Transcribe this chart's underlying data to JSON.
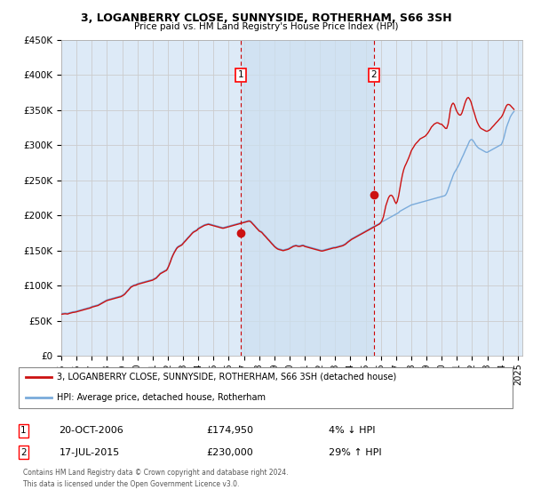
{
  "title": "3, LOGANBERRY CLOSE, SUNNYSIDE, ROTHERHAM, S66 3SH",
  "subtitle": "Price paid vs. HM Land Registry's House Price Index (HPI)",
  "ylabel_ticks": [
    "£0",
    "£50K",
    "£100K",
    "£150K",
    "£200K",
    "£250K",
    "£300K",
    "£350K",
    "£400K",
    "£450K"
  ],
  "ylim": [
    0,
    450000
  ],
  "xlim_start": 1995.0,
  "xlim_end": 2025.3,
  "hpi_color": "#7aabdb",
  "price_color": "#cc1111",
  "grid_color": "#cccccc",
  "bg_color": "#ddeaf7",
  "shade_color": "#ccddf0",
  "transaction1_date": 2006.8,
  "transaction1_price": 174950,
  "transaction1_label": "1",
  "transaction1_text": "20-OCT-2006",
  "transaction1_amount": "£174,950",
  "transaction1_hpi": "4% ↓ HPI",
  "transaction2_date": 2015.55,
  "transaction2_price": 230000,
  "transaction2_label": "2",
  "transaction2_text": "17-JUL-2015",
  "transaction2_amount": "£230,000",
  "transaction2_hpi": "29% ↑ HPI",
  "legend_line1": "3, LOGANBERRY CLOSE, SUNNYSIDE, ROTHERHAM, S66 3SH (detached house)",
  "legend_line2": "HPI: Average price, detached house, Rotherham",
  "footer": "Contains HM Land Registry data © Crown copyright and database right 2024.\nThis data is licensed under the Open Government Licence v3.0.",
  "hpi_data_x": [
    1995.0,
    1995.08,
    1995.17,
    1995.25,
    1995.33,
    1995.42,
    1995.5,
    1995.58,
    1995.67,
    1995.75,
    1995.83,
    1995.92,
    1996.0,
    1996.08,
    1996.17,
    1996.25,
    1996.33,
    1996.42,
    1996.5,
    1996.58,
    1996.67,
    1996.75,
    1996.83,
    1996.92,
    1997.0,
    1997.08,
    1997.17,
    1997.25,
    1997.33,
    1997.42,
    1997.5,
    1997.58,
    1997.67,
    1997.75,
    1997.83,
    1997.92,
    1998.0,
    1998.08,
    1998.17,
    1998.25,
    1998.33,
    1998.42,
    1998.5,
    1998.58,
    1998.67,
    1998.75,
    1998.83,
    1998.92,
    1999.0,
    1999.08,
    1999.17,
    1999.25,
    1999.33,
    1999.42,
    1999.5,
    1999.58,
    1999.67,
    1999.75,
    1999.83,
    1999.92,
    2000.0,
    2000.08,
    2000.17,
    2000.25,
    2000.33,
    2000.42,
    2000.5,
    2000.58,
    2000.67,
    2000.75,
    2000.83,
    2000.92,
    2001.0,
    2001.08,
    2001.17,
    2001.25,
    2001.33,
    2001.42,
    2001.5,
    2001.58,
    2001.67,
    2001.75,
    2001.83,
    2001.92,
    2002.0,
    2002.08,
    2002.17,
    2002.25,
    2002.33,
    2002.42,
    2002.5,
    2002.58,
    2002.67,
    2002.75,
    2002.83,
    2002.92,
    2003.0,
    2003.08,
    2003.17,
    2003.25,
    2003.33,
    2003.42,
    2003.5,
    2003.58,
    2003.67,
    2003.75,
    2003.83,
    2003.92,
    2004.0,
    2004.08,
    2004.17,
    2004.25,
    2004.33,
    2004.42,
    2004.5,
    2004.58,
    2004.67,
    2004.75,
    2004.83,
    2004.92,
    2005.0,
    2005.08,
    2005.17,
    2005.25,
    2005.33,
    2005.42,
    2005.5,
    2005.58,
    2005.67,
    2005.75,
    2005.83,
    2005.92,
    2006.0,
    2006.08,
    2006.17,
    2006.25,
    2006.33,
    2006.42,
    2006.5,
    2006.58,
    2006.67,
    2006.75,
    2006.83,
    2006.92,
    2007.0,
    2007.08,
    2007.17,
    2007.25,
    2007.33,
    2007.42,
    2007.5,
    2007.58,
    2007.67,
    2007.75,
    2007.83,
    2007.92,
    2008.0,
    2008.08,
    2008.17,
    2008.25,
    2008.33,
    2008.42,
    2008.5,
    2008.58,
    2008.67,
    2008.75,
    2008.83,
    2008.92,
    2009.0,
    2009.08,
    2009.17,
    2009.25,
    2009.33,
    2009.42,
    2009.5,
    2009.58,
    2009.67,
    2009.75,
    2009.83,
    2009.92,
    2010.0,
    2010.08,
    2010.17,
    2010.25,
    2010.33,
    2010.42,
    2010.5,
    2010.58,
    2010.67,
    2010.75,
    2010.83,
    2010.92,
    2011.0,
    2011.08,
    2011.17,
    2011.25,
    2011.33,
    2011.42,
    2011.5,
    2011.58,
    2011.67,
    2011.75,
    2011.83,
    2011.92,
    2012.0,
    2012.08,
    2012.17,
    2012.25,
    2012.33,
    2012.42,
    2012.5,
    2012.58,
    2012.67,
    2012.75,
    2012.83,
    2012.92,
    2013.0,
    2013.08,
    2013.17,
    2013.25,
    2013.33,
    2013.42,
    2013.5,
    2013.58,
    2013.67,
    2013.75,
    2013.83,
    2013.92,
    2014.0,
    2014.08,
    2014.17,
    2014.25,
    2014.33,
    2014.42,
    2014.5,
    2014.58,
    2014.67,
    2014.75,
    2014.83,
    2014.92,
    2015.0,
    2015.08,
    2015.17,
    2015.25,
    2015.33,
    2015.42,
    2015.5,
    2015.58,
    2015.67,
    2015.75,
    2015.83,
    2015.92,
    2016.0,
    2016.08,
    2016.17,
    2016.25,
    2016.33,
    2016.42,
    2016.5,
    2016.58,
    2016.67,
    2016.75,
    2016.83,
    2016.92,
    2017.0,
    2017.08,
    2017.17,
    2017.25,
    2017.33,
    2017.42,
    2017.5,
    2017.58,
    2017.67,
    2017.75,
    2017.83,
    2017.92,
    2018.0,
    2018.08,
    2018.17,
    2018.25,
    2018.33,
    2018.42,
    2018.5,
    2018.58,
    2018.67,
    2018.75,
    2018.83,
    2018.92,
    2019.0,
    2019.08,
    2019.17,
    2019.25,
    2019.33,
    2019.42,
    2019.5,
    2019.58,
    2019.67,
    2019.75,
    2019.83,
    2019.92,
    2020.0,
    2020.08,
    2020.17,
    2020.25,
    2020.33,
    2020.42,
    2020.5,
    2020.58,
    2020.67,
    2020.75,
    2020.83,
    2020.92,
    2021.0,
    2021.08,
    2021.17,
    2021.25,
    2021.33,
    2021.42,
    2021.5,
    2021.58,
    2021.67,
    2021.75,
    2021.83,
    2021.92,
    2022.0,
    2022.08,
    2022.17,
    2022.25,
    2022.33,
    2022.42,
    2022.5,
    2022.58,
    2022.67,
    2022.75,
    2022.83,
    2022.92,
    2023.0,
    2023.08,
    2023.17,
    2023.25,
    2023.33,
    2023.42,
    2023.5,
    2023.58,
    2023.67,
    2023.75,
    2023.83,
    2023.92,
    2024.0,
    2024.08,
    2024.17,
    2024.25,
    2024.33,
    2024.42,
    2024.5,
    2024.58,
    2024.67,
    2024.75
  ],
  "hpi_data_y": [
    60500,
    60800,
    61000,
    61200,
    61000,
    60800,
    61500,
    62000,
    62500,
    63000,
    63200,
    63500,
    64000,
    64500,
    65000,
    65500,
    66000,
    66500,
    67000,
    67500,
    68000,
    68500,
    69000,
    69500,
    70500,
    71000,
    71500,
    72000,
    72500,
    73000,
    74000,
    75000,
    76000,
    77000,
    78000,
    79000,
    80000,
    80500,
    81000,
    81500,
    82000,
    82500,
    83000,
    83500,
    84000,
    84500,
    85000,
    85500,
    86500,
    87500,
    89000,
    91000,
    93000,
    95000,
    97000,
    99000,
    100000,
    101000,
    101500,
    102000,
    103000,
    103500,
    104000,
    104500,
    105000,
    105500,
    106000,
    106500,
    107000,
    107500,
    108000,
    108500,
    109000,
    110000,
    111000,
    112000,
    114000,
    116000,
    118000,
    119000,
    120000,
    121000,
    122000,
    123000,
    126000,
    130000,
    135000,
    140000,
    144000,
    148000,
    151000,
    154000,
    156000,
    157000,
    158000,
    159000,
    161000,
    163000,
    165000,
    167000,
    169000,
    171000,
    173000,
    175000,
    177000,
    178000,
    179000,
    180000,
    182000,
    183000,
    184000,
    185000,
    186000,
    187000,
    187500,
    188000,
    188500,
    188000,
    187500,
    187000,
    186500,
    186000,
    185500,
    185000,
    184500,
    184000,
    183500,
    183000,
    183000,
    183500,
    184000,
    184500,
    185000,
    185500,
    186000,
    186500,
    187000,
    187500,
    188000,
    188500,
    189000,
    189500,
    190000,
    190500,
    191000,
    191500,
    192000,
    192500,
    193000,
    192500,
    191000,
    189000,
    187000,
    185000,
    183000,
    181000,
    179000,
    178000,
    177000,
    175000,
    173000,
    171000,
    169000,
    167000,
    165000,
    163000,
    161000,
    159000,
    157000,
    155500,
    154000,
    153000,
    152500,
    152000,
    151500,
    151000,
    151500,
    152000,
    152500,
    153000,
    154000,
    155000,
    156000,
    157000,
    157500,
    158000,
    157500,
    157000,
    157000,
    157500,
    158000,
    158000,
    157000,
    156500,
    156000,
    155500,
    155000,
    154500,
    154000,
    153500,
    153000,
    152500,
    152000,
    151500,
    151000,
    150500,
    150500,
    151000,
    151500,
    152000,
    152500,
    153000,
    153500,
    154000,
    154500,
    155000,
    155000,
    155500,
    156000,
    156500,
    157000,
    157500,
    158000,
    159000,
    160000,
    161500,
    163000,
    164500,
    166000,
    167000,
    168000,
    169000,
    170000,
    171000,
    172000,
    173000,
    174000,
    175000,
    176000,
    177000,
    178000,
    179000,
    180000,
    181000,
    182000,
    183000,
    184000,
    185000,
    186000,
    187000,
    188000,
    189000,
    190000,
    191000,
    192000,
    193000,
    194000,
    195000,
    196000,
    197000,
    198000,
    199000,
    200000,
    201000,
    202000,
    203000,
    204000,
    206000,
    207000,
    208000,
    209000,
    210000,
    211000,
    212000,
    213000,
    214000,
    215000,
    215500,
    216000,
    216500,
    217000,
    217500,
    218000,
    218500,
    219000,
    219500,
    220000,
    220500,
    221000,
    221500,
    222000,
    222500,
    223000,
    223500,
    224000,
    224500,
    225000,
    225500,
    226000,
    226500,
    227000,
    227500,
    228000,
    229000,
    232000,
    237000,
    242000,
    247000,
    252000,
    257000,
    261000,
    264000,
    267000,
    270000,
    274000,
    278000,
    282000,
    286000,
    290000,
    294000,
    298000,
    302000,
    306000,
    308000,
    308000,
    306000,
    303000,
    300000,
    298000,
    296000,
    295000,
    294000,
    293000,
    292000,
    291000,
    290000,
    290000,
    291000,
    292000,
    293000,
    294000,
    295000,
    296000,
    297000,
    298000,
    299000,
    300000,
    301000,
    305000,
    310000,
    318000,
    325000,
    330000,
    335000,
    340000,
    343000,
    346000,
    348000
  ],
  "price_data_x": [
    1995.0,
    1995.08,
    1995.17,
    1995.25,
    1995.33,
    1995.42,
    1995.5,
    1995.58,
    1995.67,
    1995.75,
    1995.83,
    1995.92,
    1996.0,
    1996.08,
    1996.17,
    1996.25,
    1996.33,
    1996.42,
    1996.5,
    1996.58,
    1996.67,
    1996.75,
    1996.83,
    1996.92,
    1997.0,
    1997.08,
    1997.17,
    1997.25,
    1997.33,
    1997.42,
    1997.5,
    1997.58,
    1997.67,
    1997.75,
    1997.83,
    1997.92,
    1998.0,
    1998.08,
    1998.17,
    1998.25,
    1998.33,
    1998.42,
    1998.5,
    1998.58,
    1998.67,
    1998.75,
    1998.83,
    1998.92,
    1999.0,
    1999.08,
    1999.17,
    1999.25,
    1999.33,
    1999.42,
    1999.5,
    1999.58,
    1999.67,
    1999.75,
    1999.83,
    1999.92,
    2000.0,
    2000.08,
    2000.17,
    2000.25,
    2000.33,
    2000.42,
    2000.5,
    2000.58,
    2000.67,
    2000.75,
    2000.83,
    2000.92,
    2001.0,
    2001.08,
    2001.17,
    2001.25,
    2001.33,
    2001.42,
    2001.5,
    2001.58,
    2001.67,
    2001.75,
    2001.83,
    2001.92,
    2002.0,
    2002.08,
    2002.17,
    2002.25,
    2002.33,
    2002.42,
    2002.5,
    2002.58,
    2002.67,
    2002.75,
    2002.83,
    2002.92,
    2003.0,
    2003.08,
    2003.17,
    2003.25,
    2003.33,
    2003.42,
    2003.5,
    2003.58,
    2003.67,
    2003.75,
    2003.83,
    2003.92,
    2004.0,
    2004.08,
    2004.17,
    2004.25,
    2004.33,
    2004.42,
    2004.5,
    2004.58,
    2004.67,
    2004.75,
    2004.83,
    2004.92,
    2005.0,
    2005.08,
    2005.17,
    2005.25,
    2005.33,
    2005.42,
    2005.5,
    2005.58,
    2005.67,
    2005.75,
    2005.83,
    2005.92,
    2006.0,
    2006.08,
    2006.17,
    2006.25,
    2006.33,
    2006.42,
    2006.5,
    2006.58,
    2006.67,
    2006.75,
    2006.83,
    2006.92,
    2007.0,
    2007.08,
    2007.17,
    2007.25,
    2007.33,
    2007.42,
    2007.5,
    2007.58,
    2007.67,
    2007.75,
    2007.83,
    2007.92,
    2008.0,
    2008.08,
    2008.17,
    2008.25,
    2008.33,
    2008.42,
    2008.5,
    2008.58,
    2008.67,
    2008.75,
    2008.83,
    2008.92,
    2009.0,
    2009.08,
    2009.17,
    2009.25,
    2009.33,
    2009.42,
    2009.5,
    2009.58,
    2009.67,
    2009.75,
    2009.83,
    2009.92,
    2010.0,
    2010.08,
    2010.17,
    2010.25,
    2010.33,
    2010.42,
    2010.5,
    2010.58,
    2010.67,
    2010.75,
    2010.83,
    2010.92,
    2011.0,
    2011.08,
    2011.17,
    2011.25,
    2011.33,
    2011.42,
    2011.5,
    2011.58,
    2011.67,
    2011.75,
    2011.83,
    2011.92,
    2012.0,
    2012.08,
    2012.17,
    2012.25,
    2012.33,
    2012.42,
    2012.5,
    2012.58,
    2012.67,
    2012.75,
    2012.83,
    2012.92,
    2013.0,
    2013.08,
    2013.17,
    2013.25,
    2013.33,
    2013.42,
    2013.5,
    2013.58,
    2013.67,
    2013.75,
    2013.83,
    2013.92,
    2014.0,
    2014.08,
    2014.17,
    2014.25,
    2014.33,
    2014.42,
    2014.5,
    2014.58,
    2014.67,
    2014.75,
    2014.83,
    2014.92,
    2015.0,
    2015.08,
    2015.17,
    2015.25,
    2015.33,
    2015.42,
    2015.5,
    2015.58,
    2015.67,
    2015.75,
    2015.83,
    2015.92,
    2016.0,
    2016.08,
    2016.17,
    2016.25,
    2016.33,
    2016.42,
    2016.5,
    2016.58,
    2016.67,
    2016.75,
    2016.83,
    2016.92,
    2017.0,
    2017.08,
    2017.17,
    2017.25,
    2017.33,
    2017.42,
    2017.5,
    2017.58,
    2017.67,
    2017.75,
    2017.83,
    2017.92,
    2018.0,
    2018.08,
    2018.17,
    2018.25,
    2018.33,
    2018.42,
    2018.5,
    2018.58,
    2018.67,
    2018.75,
    2018.83,
    2018.92,
    2019.0,
    2019.08,
    2019.17,
    2019.25,
    2019.33,
    2019.42,
    2019.5,
    2019.58,
    2019.67,
    2019.75,
    2019.83,
    2019.92,
    2020.0,
    2020.08,
    2020.17,
    2020.25,
    2020.33,
    2020.42,
    2020.5,
    2020.58,
    2020.67,
    2020.75,
    2020.83,
    2020.92,
    2021.0,
    2021.08,
    2021.17,
    2021.25,
    2021.33,
    2021.42,
    2021.5,
    2021.58,
    2021.67,
    2021.75,
    2021.83,
    2021.92,
    2022.0,
    2022.08,
    2022.17,
    2022.25,
    2022.33,
    2022.42,
    2022.5,
    2022.58,
    2022.67,
    2022.75,
    2022.83,
    2022.92,
    2023.0,
    2023.08,
    2023.17,
    2023.25,
    2023.33,
    2023.42,
    2023.5,
    2023.58,
    2023.67,
    2023.75,
    2023.83,
    2023.92,
    2024.0,
    2024.08,
    2024.17,
    2024.25,
    2024.33,
    2024.42,
    2024.5,
    2024.58,
    2024.67,
    2024.75
  ],
  "price_data_y": [
    59500,
    59700,
    60000,
    60200,
    60000,
    59800,
    60500,
    61000,
    61500,
    62000,
    62200,
    62500,
    63000,
    63500,
    64000,
    64500,
    65000,
    65500,
    66000,
    66500,
    67000,
    67500,
    68000,
    68500,
    69500,
    70000,
    70500,
    71000,
    71500,
    72000,
    73000,
    74000,
    75000,
    76000,
    77000,
    78000,
    79000,
    79500,
    80000,
    80500,
    81000,
    81500,
    82000,
    82500,
    83000,
    83500,
    84000,
    84500,
    85500,
    86500,
    88000,
    90000,
    92000,
    94000,
    96000,
    98000,
    99000,
    100000,
    100500,
    101000,
    102000,
    102500,
    103000,
    103500,
    104000,
    104500,
    105000,
    105500,
    106000,
    106500,
    107000,
    107500,
    108000,
    109000,
    110000,
    111000,
    113000,
    115000,
    117000,
    118000,
    119000,
    120000,
    121000,
    122000,
    125000,
    129000,
    134000,
    139000,
    143000,
    147000,
    150000,
    153000,
    155000,
    156000,
    157000,
    158000,
    160000,
    162000,
    164000,
    166000,
    168000,
    170000,
    172000,
    174000,
    176000,
    177000,
    178000,
    179000,
    181000,
    182000,
    183000,
    184000,
    185000,
    186000,
    186500,
    187000,
    187500,
    187000,
    186500,
    186000,
    185500,
    185000,
    184500,
    184000,
    183500,
    183000,
    182500,
    182000,
    182000,
    182500,
    183000,
    183500,
    184000,
    184500,
    185000,
    185500,
    186000,
    186500,
    187000,
    187500,
    188000,
    188500,
    189000,
    189500,
    190000,
    190500,
    191000,
    191500,
    192000,
    191500,
    190000,
    188000,
    186000,
    184000,
    182000,
    180000,
    178000,
    177000,
    176000,
    174000,
    172000,
    170000,
    168000,
    166000,
    164000,
    162000,
    160000,
    158000,
    156000,
    154500,
    153000,
    152000,
    151500,
    151000,
    150500,
    150000,
    150500,
    151000,
    151500,
    152000,
    153000,
    154000,
    155000,
    156000,
    156500,
    157000,
    156500,
    156000,
    156000,
    156500,
    157000,
    157000,
    156000,
    155500,
    155000,
    154500,
    154000,
    153500,
    153000,
    152500,
    152000,
    151500,
    151000,
    150500,
    150000,
    149500,
    149500,
    150000,
    150500,
    151000,
    151500,
    152000,
    152500,
    153000,
    153500,
    154000,
    154000,
    154500,
    155000,
    155500,
    156000,
    156500,
    157000,
    158000,
    159000,
    160500,
    162000,
    163500,
    165000,
    166000,
    167000,
    168000,
    169000,
    170000,
    171000,
    172000,
    173000,
    174000,
    175000,
    176000,
    177000,
    178000,
    179000,
    180000,
    181000,
    182000,
    183000,
    184000,
    185000,
    186000,
    187000,
    188000,
    190000,
    193000,
    198000,
    206000,
    214000,
    220000,
    225000,
    228000,
    229000,
    228000,
    225000,
    220000,
    217000,
    220000,
    228000,
    238000,
    248000,
    258000,
    265000,
    270000,
    274000,
    278000,
    282000,
    287000,
    292000,
    295000,
    298000,
    301000,
    303000,
    305000,
    307000,
    309000,
    310000,
    311000,
    312000,
    313000,
    315000,
    317000,
    320000,
    323000,
    326000,
    328000,
    330000,
    331000,
    332000,
    332000,
    331000,
    330000,
    330000,
    328000,
    326000,
    324000,
    324000,
    330000,
    340000,
    352000,
    358000,
    360000,
    358000,
    352000,
    348000,
    345000,
    343000,
    343000,
    346000,
    352000,
    358000,
    363000,
    367000,
    368000,
    366000,
    362000,
    356000,
    350000,
    344000,
    338000,
    333000,
    329000,
    326000,
    324000,
    323000,
    322000,
    321000,
    320000,
    320000,
    321000,
    322000,
    324000,
    326000,
    328000,
    330000,
    332000,
    334000,
    336000,
    338000,
    340000,
    343000,
    347000,
    352000,
    356000,
    358000,
    358000,
    357000,
    355000,
    353000,
    351000
  ]
}
